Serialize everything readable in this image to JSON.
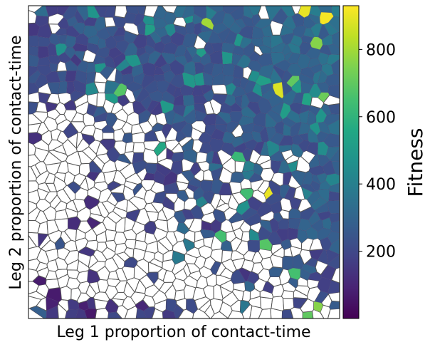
{
  "chart_data": {
    "type": "heatmap",
    "subtype": "voronoi-map",
    "xlabel": "Leg 1 proportion of contact-time",
    "ylabel": "Leg 2 proportion of contact-time",
    "colorbar": {
      "label": "Fitness",
      "colormap": "viridis",
      "range": [
        0,
        930
      ],
      "ticks": [
        200,
        400,
        600,
        800
      ],
      "tick_labels": [
        "200",
        "400",
        "600",
        "800"
      ]
    },
    "xlim": [
      0,
      1
    ],
    "ylim": [
      0,
      1
    ],
    "grid": false,
    "empty_cell_color": "#ffffff",
    "cell_edge_color": "#444444",
    "approx_cell_count": 1000,
    "notable_cells": [
      {
        "x": 0.13,
        "y": 0.81,
        "fitness": 260
      },
      {
        "x": 0.3,
        "y": 0.72,
        "fitness": 680
      },
      {
        "x": 0.4,
        "y": 0.92,
        "fitness": 520
      },
      {
        "x": 0.59,
        "y": 0.93,
        "fitness": 800
      },
      {
        "x": 0.66,
        "y": 0.51,
        "fitness": 620
      },
      {
        "x": 0.72,
        "y": 0.41,
        "fitness": 640
      },
      {
        "x": 0.78,
        "y": 0.4,
        "fitness": 900
      },
      {
        "x": 0.79,
        "y": 0.73,
        "fitness": 880
      },
      {
        "x": 0.85,
        "y": 0.77,
        "fitness": 700
      },
      {
        "x": 0.9,
        "y": 0.98,
        "fitness": 900
      },
      {
        "x": 0.95,
        "y": 0.97,
        "fitness": 920
      },
      {
        "x": 0.92,
        "y": 0.88,
        "fitness": 760
      },
      {
        "x": 0.94,
        "y": 0.7,
        "fitness": 720
      },
      {
        "x": 0.41,
        "y": 0.53,
        "fitness": 560
      },
      {
        "x": 0.46,
        "y": 0.67,
        "fitness": 500
      },
      {
        "x": 0.76,
        "y": 0.25,
        "fitness": 680
      },
      {
        "x": 0.86,
        "y": 0.14,
        "fitness": 650
      },
      {
        "x": 0.9,
        "y": 0.02,
        "fitness": 700
      },
      {
        "x": 0.47,
        "y": 0.21,
        "fitness": 380
      },
      {
        "x": 0.62,
        "y": 0.28,
        "fitness": 650
      },
      {
        "x": 0.94,
        "y": 0.05,
        "fitness": 760
      }
    ]
  }
}
